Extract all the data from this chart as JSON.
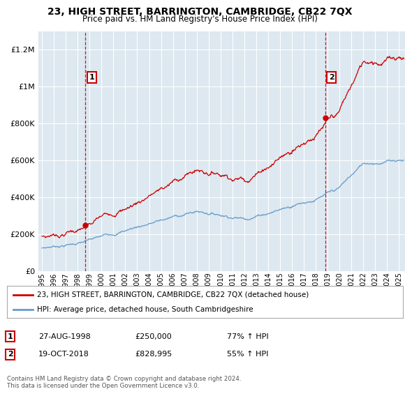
{
  "title": "23, HIGH STREET, BARRINGTON, CAMBRIDGE, CB22 7QX",
  "subtitle": "Price paid vs. HM Land Registry's House Price Index (HPI)",
  "legend_line1": "23, HIGH STREET, BARRINGTON, CAMBRIDGE, CB22 7QX (detached house)",
  "legend_line2": "HPI: Average price, detached house, South Cambridgeshire",
  "annotation1_date": "27-AUG-1998",
  "annotation1_price": "£250,000",
  "annotation1_hpi": "77% ↑ HPI",
  "annotation2_date": "19-OCT-2018",
  "annotation2_price": "£828,995",
  "annotation2_hpi": "55% ↑ HPI",
  "footnote": "Contains HM Land Registry data © Crown copyright and database right 2024.\nThis data is licensed under the Open Government Licence v3.0.",
  "red_color": "#cc0000",
  "blue_color": "#6699cc",
  "plot_bg_color": "#dde8f0",
  "background_color": "#ffffff",
  "grid_color": "#ffffff",
  "sale1_year": 1998.65,
  "sale1_price": 250000,
  "sale2_year": 2018.79,
  "sale2_price": 828995,
  "ylim_max": 1300000,
  "xlim_start": 1994.7,
  "xlim_end": 2025.5
}
